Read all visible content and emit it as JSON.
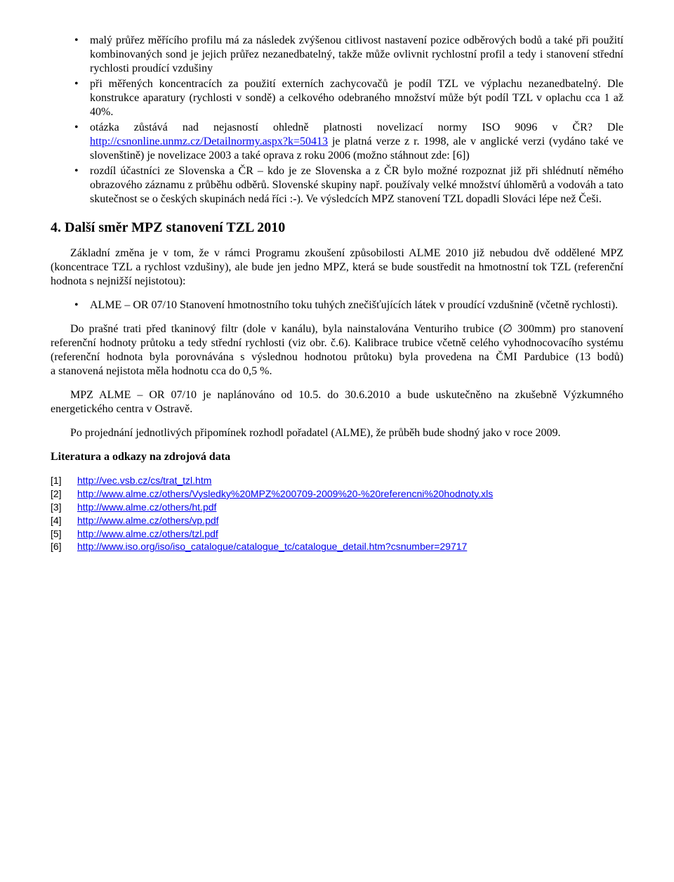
{
  "bullets": [
    {
      "text": "malý průřez měřícího profilu má za následek zvýšenou citlivost nastavení pozice odběrových bodů a také při použití kombinovaných sond je jejich průřez nezanedbatelný, takže může ovlivnit rychlostní profil a tedy i stanovení střední rychlosti proudící vzdušiny"
    },
    {
      "text": "při měřených koncentracích za použití externích zachycovačů je podíl TZL ve výplachu nezanedbatelný. Dle konstrukce aparatury (rychlosti v sondě) a celkového odebraného množství může být podíl TZL v oplachu cca 1 až 40%."
    },
    {
      "pre": "otázka zůstává nad nejasností ohledně platnosti novelizací normy ISO 9096 v ČR? Dle ",
      "link1_text": "http://csnonline.unmz.cz/Detailnormy.aspx?k=50413",
      "post": " je platná verze z r. 1998, ale v anglické verzi (vydáno také ve slovenštině) je novelizace 2003 a také oprava z roku 2006 (možno stáhnout zde: [6])"
    },
    {
      "text": "rozdíl účastníci ze Slovenska a ČR – kdo je ze Slovenska a z ČR bylo možné rozpoznat již při shlédnutí němého obrazového záznamu z průběhu odběrů. Slovenské skupiny např. používaly velké množství úhloměrů a vodováh a tato skutečnost se o českých skupinách nedá říci :-). Ve výsledcích MPZ stanovení TZL dopadli Slováci lépe než Češi."
    }
  ],
  "section_heading": "4. Další směr MPZ stanovení TZL 2010",
  "para1": "Základní změna je v tom, že v rámci Programu zkoušení způsobilosti ALME 2010 již nebudou dvě oddělené MPZ (koncentrace TZL a rychlost vzdušiny), ale bude jen jedno MPZ, která se bude soustředit na hmotnostní tok TZL (referenční hodnota s nejnižší nejistotou):",
  "inner_bullet": "ALME – OR 07/10 Stanovení hmotnostního toku tuhých znečišťujících látek v proudící vzdušnině (včetně rychlosti).",
  "para2_pre": "Do prašné trati před tkaninový filtr (dole v kanálu), byla nainstalována Venturiho trubice (",
  "para2_diam": "∅",
  "para2_post": " 300mm) pro stanovení referenční hodnoty průtoku a tedy střední rychlosti (viz obr. č.6). Kalibrace trubice včetně celého vyhodnocovacího systému (referenční hodnota byla porovnávána s výslednou hodnotou průtoku) byla provedena na ČMI Pardubice (13 bodů) a stanovená nejistota  měla hodnotu cca do 0,5 %.",
  "para3": "MPZ ALME – OR  07/10 je naplánováno od 10.5. do 30.6.2010 a bude uskutečněno na zkušebně Výzkumného energetického centra v Ostravě.",
  "para4": "Po projednání jednotlivých připomínek rozhodl pořadatel (ALME), že průběh bude shodný jako v roce 2009.",
  "lit_heading": "Literatura a odkazy na zdrojová data",
  "refs": [
    {
      "n": "[1]",
      "url": "http://vec.vsb.cz/cs/trat_tzl.htm"
    },
    {
      "n": "[2]",
      "url": "http://www.alme.cz/others/Vysledky%20MPZ%200709-2009%20-%20referencni%20hodnoty.xls"
    },
    {
      "n": "[3]",
      "url": "http://www.alme.cz/others/ht.pdf"
    },
    {
      "n": "[4]",
      "url": "http://www.alme.cz/others/vp.pdf"
    },
    {
      "n": "[5]",
      "url": "http://www.alme.cz/others/tzl.pdf"
    },
    {
      "n": "[6]",
      "url": "http://www.iso.org/iso/iso_catalogue/catalogue_tc/catalogue_detail.htm?csnumber=29717"
    }
  ],
  "colors": {
    "link": "#0000ee",
    "text": "#000000",
    "background": "#ffffff"
  },
  "fonts": {
    "body_family": "Times New Roman",
    "body_size_pt": 12,
    "refs_family": "Arial",
    "refs_size_pt": 10.5,
    "heading_size_pt": 15
  }
}
